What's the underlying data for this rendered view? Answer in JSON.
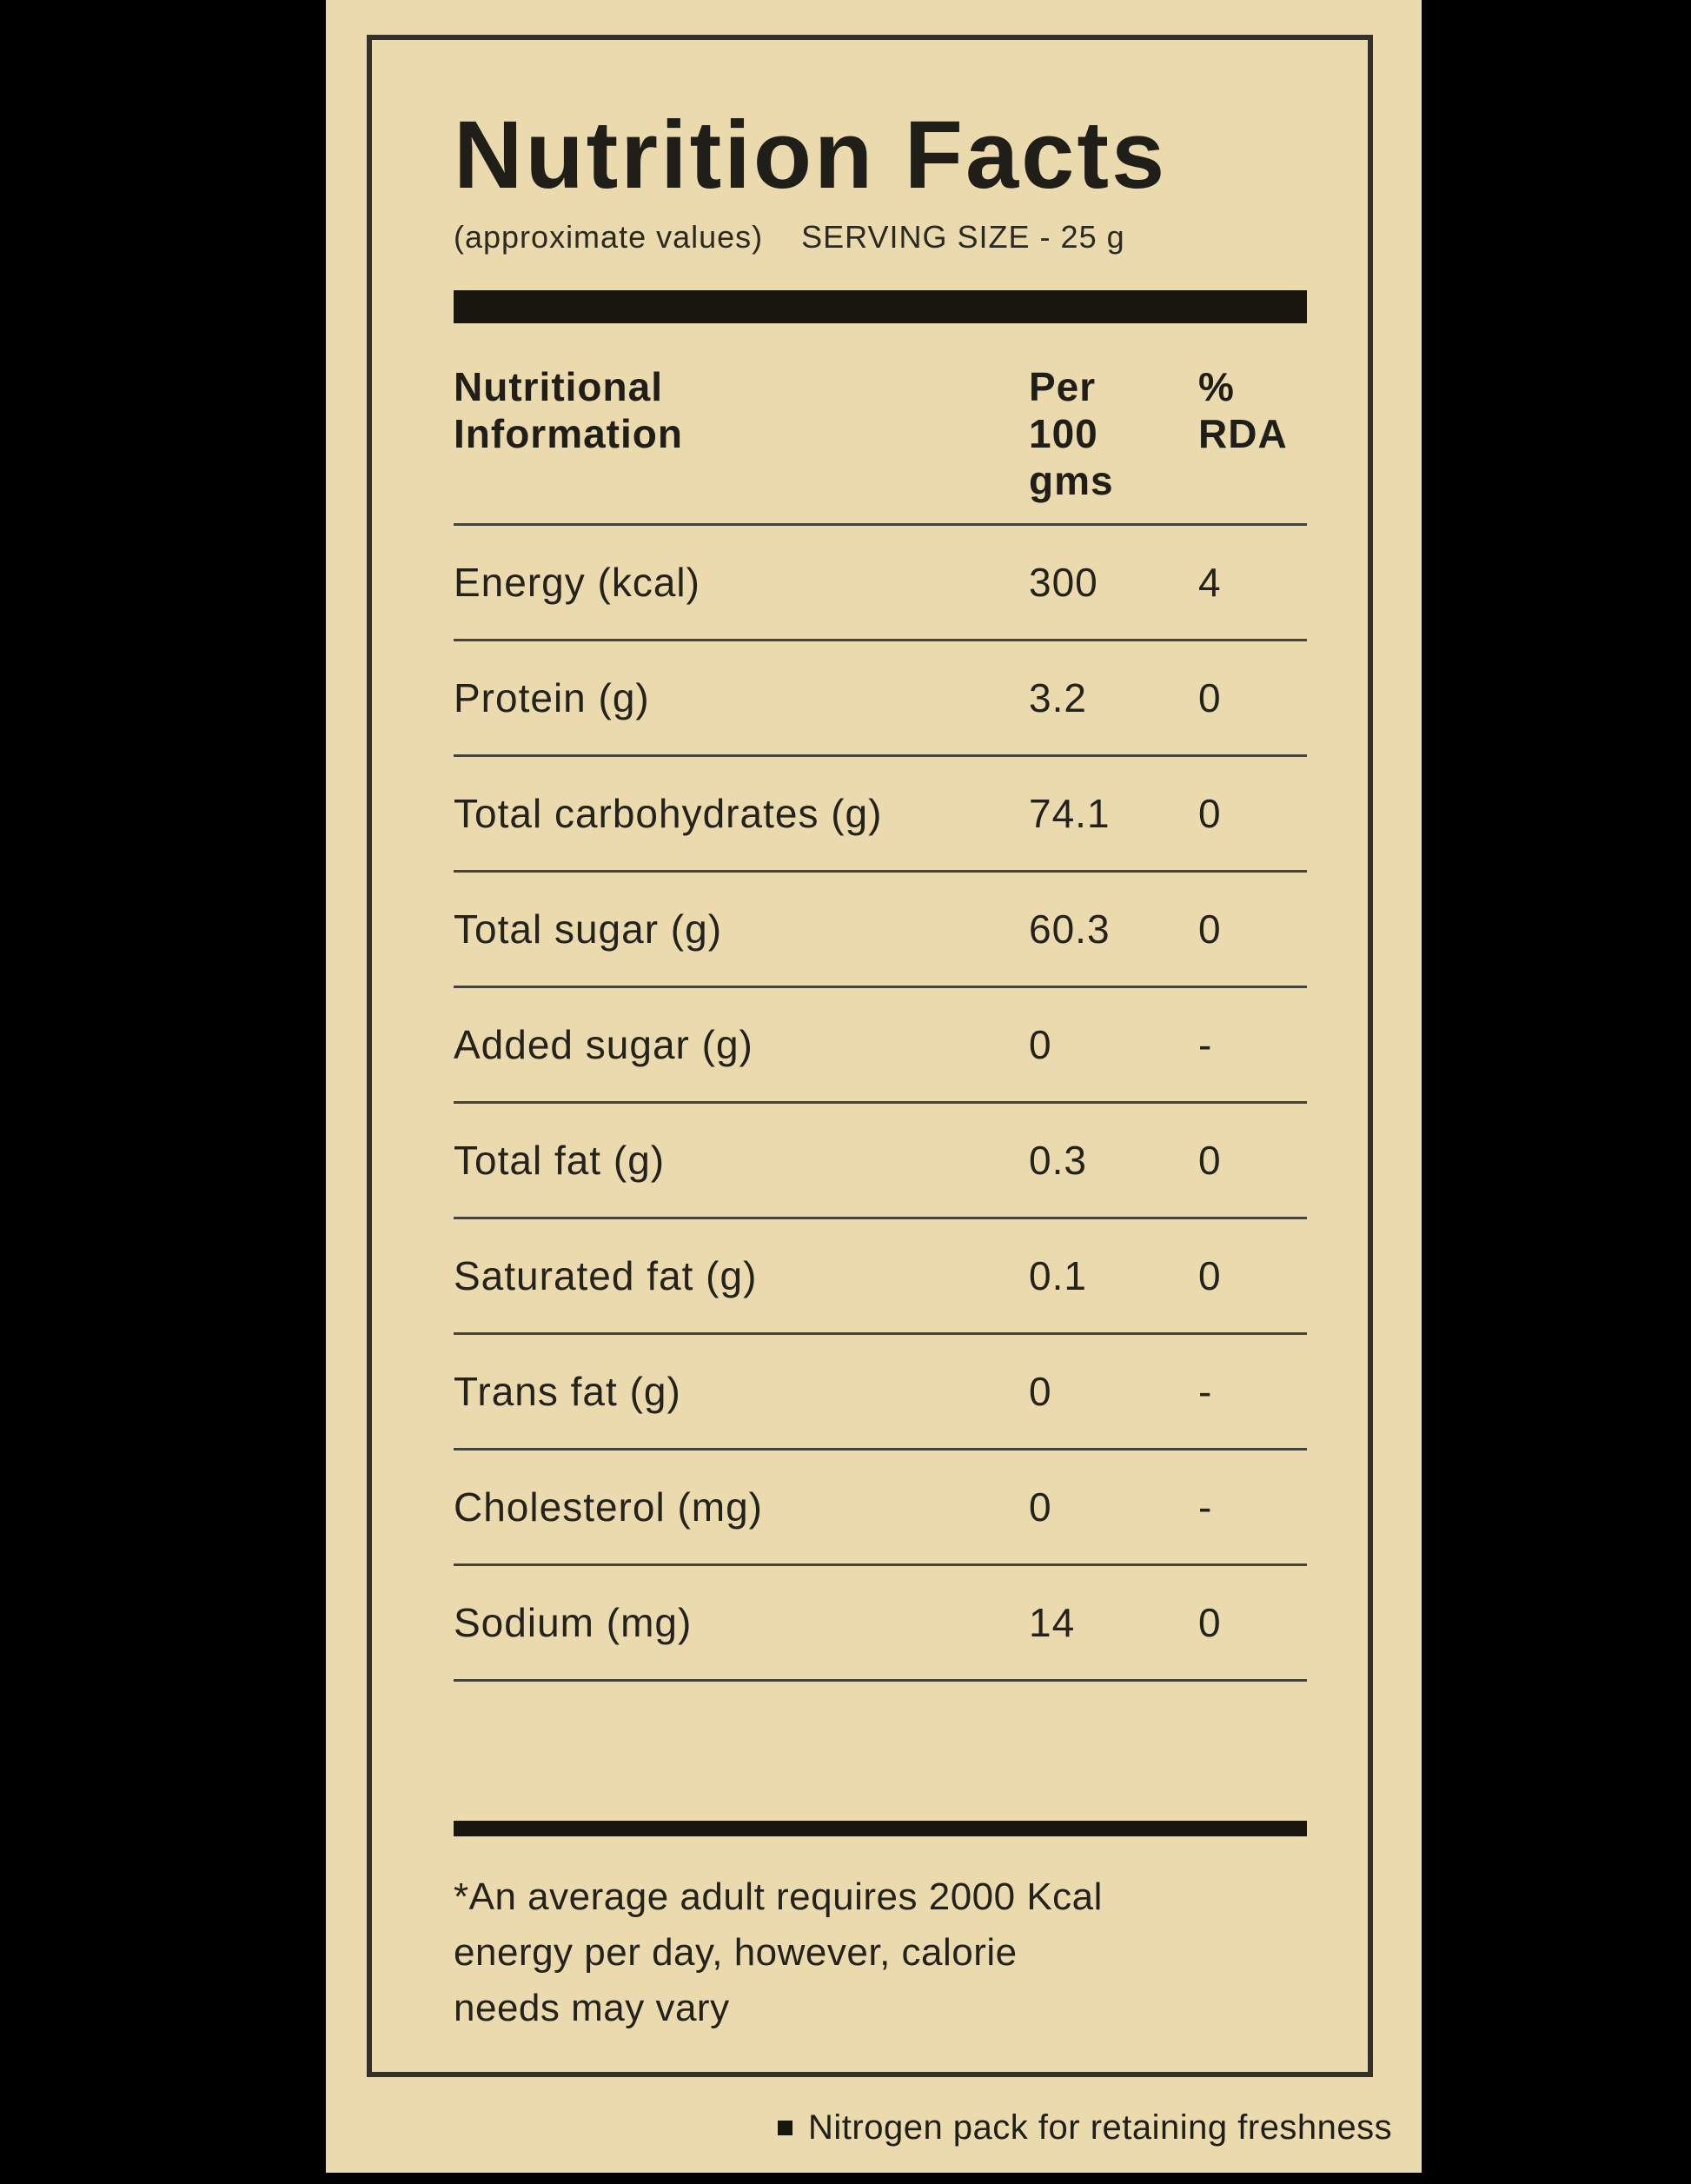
{
  "colors": {
    "background": "#000000",
    "panel": "#ebdaae",
    "ink": "#23221c",
    "bar": "#17160f",
    "divider": "#45433a",
    "box_border": "#33312a"
  },
  "label": {
    "title": "Nutrition Facts",
    "subtitle": {
      "left": "(approximate values)",
      "right": "SERVING SIZE - 25 g"
    },
    "table": {
      "header": {
        "col1": "Nutritional\nInformation",
        "col2": "Per\n100\ngms",
        "col3": "%\nRDA"
      },
      "rows": [
        {
          "name": "Energy (kcal)",
          "per_100": "300",
          "rda": "4"
        },
        {
          "name": "Protein (g)",
          "per_100": "3.2",
          "rda": "0"
        },
        {
          "name": "Total carbohydrates (g)",
          "per_100": "74.1",
          "rda": "0"
        },
        {
          "name": "Total sugar (g)",
          "per_100": "60.3",
          "rda": "0"
        },
        {
          "name": "Added sugar (g)",
          "per_100": "0",
          "rda": "-"
        },
        {
          "name": "Total fat (g)",
          "per_100": "0.3",
          "rda": "0"
        },
        {
          "name": "Saturated fat (g)",
          "per_100": "0.1",
          "rda": "0"
        },
        {
          "name": "Trans fat (g)",
          "per_100": "0",
          "rda": "-"
        },
        {
          "name": "Cholesterol (mg)",
          "per_100": "0",
          "rda": "-"
        },
        {
          "name": "Sodium (mg)",
          "per_100": "14",
          "rda": "0"
        }
      ]
    },
    "footnote": {
      "line1": "*An average adult requires 2000 Kcal",
      "line2": "energy per day, however, calorie",
      "line3": "needs may vary"
    },
    "outside_note": "Nitrogen pack for retaining freshness"
  }
}
